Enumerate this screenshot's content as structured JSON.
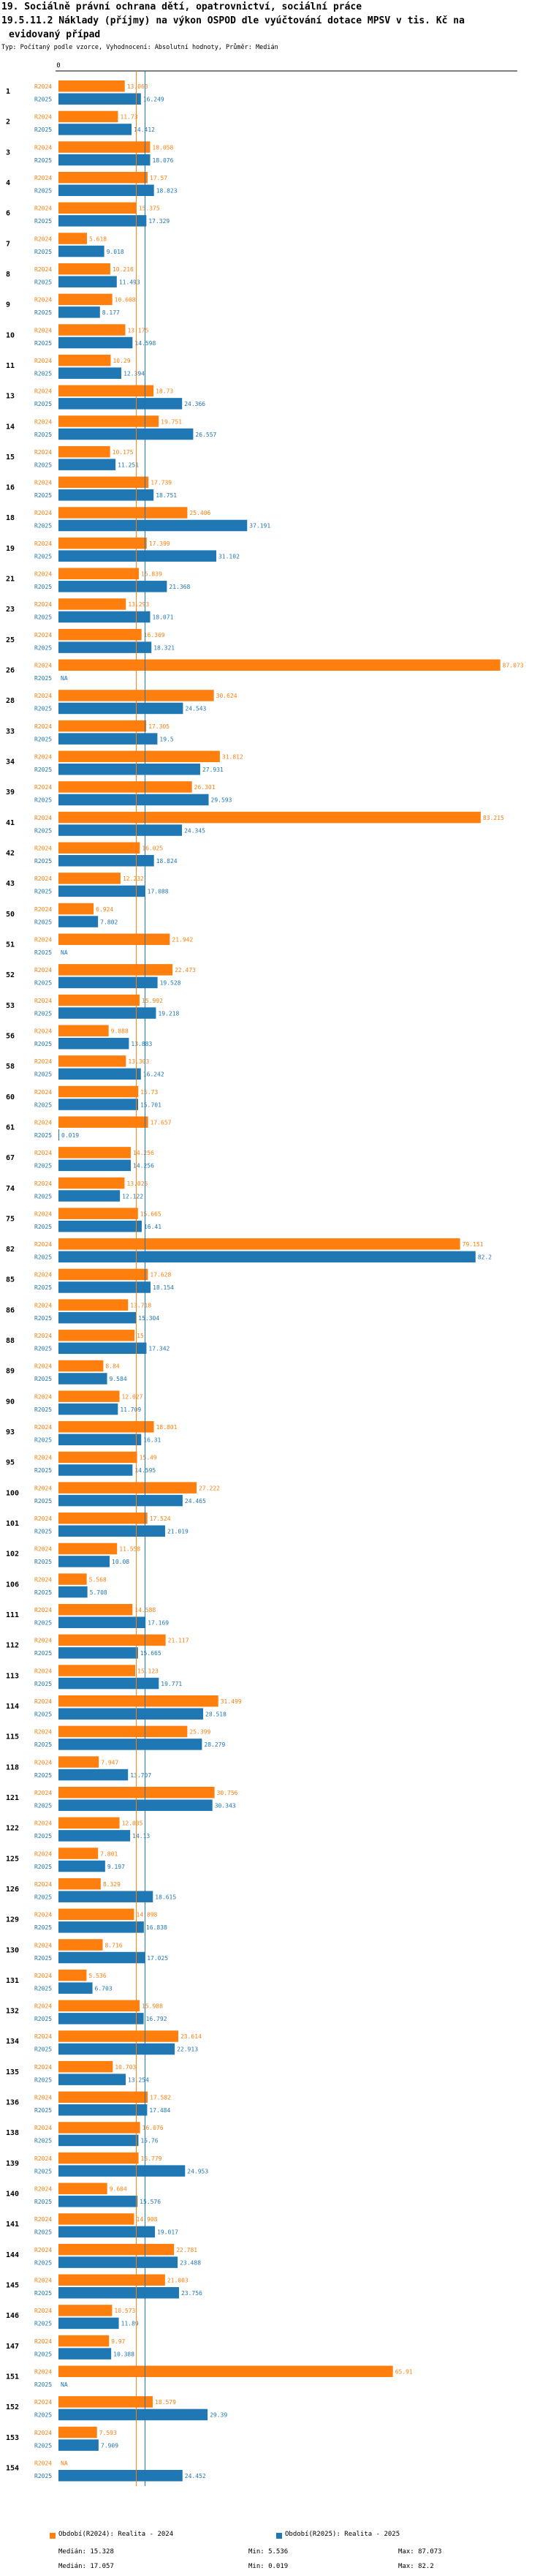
{
  "header": {
    "title_line1": "19. Sociálně právní ochrana dětí, opatrovnictví, sociální práce",
    "title_line2": "19.5.11.2 Náklady (příjmy) na výkon OSPOD dle vyúčtování dotace MPSV v tis. Kč na",
    "title_line3": "evidovaný případ",
    "subtitle": "Typ: Počítaný podle vzorce, Vyhodnocení: Absolutní hodnoty, Průměr: Medián"
  },
  "colors": {
    "r2024": "#ff7f0e",
    "r2025": "#1f77b4",
    "axis": "#000000"
  },
  "chart_data": {
    "type": "bar",
    "orientation": "horizontal",
    "xlim": [
      0,
      90
    ],
    "x_tick_label": "0",
    "series": [
      {
        "name": "R2024",
        "legend": "Období(R2024): Realita - 2024",
        "median": 15.328,
        "median_label": "Medián: 15.328",
        "min_label": "Min: 5.536",
        "max_label": "Max: 87.073"
      },
      {
        "name": "R2025",
        "legend": "Období(R2025): Realita - 2025",
        "median": 17.057,
        "median_label": "Medián: 17.057",
        "min_label": "Min: 0.019",
        "max_label": "Max: 82.2"
      }
    ],
    "rows": [
      {
        "id": "1",
        "v2024": 13.063,
        "l2024": "13.063",
        "v2025": 16.249,
        "l2025": "16.249"
      },
      {
        "id": "2",
        "v2024": 11.73,
        "l2024": "11.73",
        "v2025": 14.412,
        "l2025": "14.412"
      },
      {
        "id": "3",
        "v2024": 18.058,
        "l2024": "18.058",
        "v2025": 18.076,
        "l2025": "18.076"
      },
      {
        "id": "4",
        "v2024": 17.57,
        "l2024": "17.57",
        "v2025": 18.823,
        "l2025": "18.823"
      },
      {
        "id": "6",
        "v2024": 15.375,
        "l2024": "15.375",
        "v2025": 17.329,
        "l2025": "17.329"
      },
      {
        "id": "7",
        "v2024": 5.618,
        "l2024": "5.618",
        "v2025": 9.018,
        "l2025": "9.018"
      },
      {
        "id": "8",
        "v2024": 10.216,
        "l2024": "10.216",
        "v2025": 11.493,
        "l2025": "11.493"
      },
      {
        "id": "9",
        "v2024": 10.608,
        "l2024": "10.608",
        "v2025": 8.177,
        "l2025": "8.177"
      },
      {
        "id": "10",
        "v2024": 13.175,
        "l2024": "13.175",
        "v2025": 14.598,
        "l2025": "14.598"
      },
      {
        "id": "11",
        "v2024": 10.29,
        "l2024": "10.29",
        "v2025": 12.394,
        "l2025": "12.394"
      },
      {
        "id": "13",
        "v2024": 18.73,
        "l2024": "18.73",
        "v2025": 24.366,
        "l2025": "24.366"
      },
      {
        "id": "14",
        "v2024": 19.751,
        "l2024": "19.751",
        "v2025": 26.557,
        "l2025": "26.557"
      },
      {
        "id": "15",
        "v2024": 10.175,
        "l2024": "10.175",
        "v2025": 11.251,
        "l2025": "11.251"
      },
      {
        "id": "16",
        "v2024": 17.739,
        "l2024": "17.739",
        "v2025": 18.751,
        "l2025": "18.751"
      },
      {
        "id": "18",
        "v2024": 25.406,
        "l2024": "25.406",
        "v2025": 37.191,
        "l2025": "37.191"
      },
      {
        "id": "19",
        "v2024": 17.399,
        "l2024": "17.399",
        "v2025": 31.102,
        "l2025": "31.102"
      },
      {
        "id": "21",
        "v2024": 15.839,
        "l2024": "15.839",
        "v2025": 21.368,
        "l2025": "21.368"
      },
      {
        "id": "23",
        "v2024": 13.293,
        "l2024": "13.293",
        "v2025": 18.071,
        "l2025": "18.071"
      },
      {
        "id": "25",
        "v2024": 16.369,
        "l2024": "16.369",
        "v2025": 18.321,
        "l2025": "18.321"
      },
      {
        "id": "26",
        "v2024": 87.073,
        "l2024": "87.073",
        "v2025": 0,
        "l2025": "NA"
      },
      {
        "id": "28",
        "v2024": 30.624,
        "l2024": "30.624",
        "v2025": 24.543,
        "l2025": "24.543"
      },
      {
        "id": "33",
        "v2024": 17.305,
        "l2024": "17.305",
        "v2025": 19.5,
        "l2025": "19.5"
      },
      {
        "id": "34",
        "v2024": 31.812,
        "l2024": "31.812",
        "v2025": 27.931,
        "l2025": "27.931"
      },
      {
        "id": "39",
        "v2024": 26.301,
        "l2024": "26.301",
        "v2025": 29.593,
        "l2025": "29.593"
      },
      {
        "id": "41",
        "v2024": 83.215,
        "l2024": "83.215",
        "v2025": 24.345,
        "l2025": "24.345"
      },
      {
        "id": "42",
        "v2024": 16.025,
        "l2024": "16.025",
        "v2025": 18.824,
        "l2025": "18.824"
      },
      {
        "id": "43",
        "v2024": 12.232,
        "l2024": "12.232",
        "v2025": 17.088,
        "l2025": "17.088"
      },
      {
        "id": "50",
        "v2024": 6.924,
        "l2024": "6.924",
        "v2025": 7.802,
        "l2025": "7.802"
      },
      {
        "id": "51",
        "v2024": 21.942,
        "l2024": "21.942",
        "v2025": 0,
        "l2025": "NA"
      },
      {
        "id": "52",
        "v2024": 22.473,
        "l2024": "22.473",
        "v2025": 19.528,
        "l2025": "19.528"
      },
      {
        "id": "53",
        "v2024": 15.992,
        "l2024": "15.992",
        "v2025": 19.218,
        "l2025": "19.218"
      },
      {
        "id": "56",
        "v2024": 9.888,
        "l2024": "9.888",
        "v2025": 13.883,
        "l2025": "13.883"
      },
      {
        "id": "58",
        "v2024": 13.303,
        "l2024": "13.303",
        "v2025": 16.242,
        "l2025": "16.242"
      },
      {
        "id": "60",
        "v2024": 15.73,
        "l2024": "15.73",
        "v2025": 15.701,
        "l2025": "15.701"
      },
      {
        "id": "61",
        "v2024": 17.657,
        "l2024": "17.657",
        "v2025": 0.019,
        "l2025": "0.019"
      },
      {
        "id": "67",
        "v2024": 14.256,
        "l2024": "14.256",
        "v2025": 14.256,
        "l2025": "14.256"
      },
      {
        "id": "74",
        "v2024": 13.025,
        "l2024": "13.025",
        "v2025": 12.122,
        "l2025": "12.122"
      },
      {
        "id": "75",
        "v2024": 15.665,
        "l2024": "15.665",
        "v2025": 16.41,
        "l2025": "16.41"
      },
      {
        "id": "82",
        "v2024": 79.151,
        "l2024": "79.151",
        "v2025": 82.2,
        "l2025": "82.2"
      },
      {
        "id": "85",
        "v2024": 17.628,
        "l2024": "17.628",
        "v2025": 18.154,
        "l2025": "18.154"
      },
      {
        "id": "86",
        "v2024": 13.718,
        "l2024": "13.718",
        "v2025": 15.304,
        "l2025": "15.304"
      },
      {
        "id": "88",
        "v2024": 15,
        "l2024": "15",
        "v2025": 17.342,
        "l2025": "17.342"
      },
      {
        "id": "89",
        "v2024": 8.84,
        "l2024": "8.84",
        "v2025": 9.584,
        "l2025": "9.584"
      },
      {
        "id": "90",
        "v2024": 12.027,
        "l2024": "12.027",
        "v2025": 11.709,
        "l2025": "11.709"
      },
      {
        "id": "93",
        "v2024": 18.801,
        "l2024": "18.801",
        "v2025": 16.31,
        "l2025": "16.31"
      },
      {
        "id": "95",
        "v2024": 15.49,
        "l2024": "15.49",
        "v2025": 14.595,
        "l2025": "14.595"
      },
      {
        "id": "100",
        "v2024": 27.222,
        "l2024": "27.222",
        "v2025": 24.465,
        "l2025": "24.465"
      },
      {
        "id": "101",
        "v2024": 17.524,
        "l2024": "17.524",
        "v2025": 21.019,
        "l2025": "21.019"
      },
      {
        "id": "102",
        "v2024": 11.558,
        "l2024": "11.558",
        "v2025": 10.08,
        "l2025": "10.08"
      },
      {
        "id": "106",
        "v2024": 5.568,
        "l2024": "5.568",
        "v2025": 5.708,
        "l2025": "5.708"
      },
      {
        "id": "111",
        "v2024": 14.588,
        "l2024": "14.588",
        "v2025": 17.169,
        "l2025": "17.169"
      },
      {
        "id": "112",
        "v2024": 21.117,
        "l2024": "21.117",
        "v2025": 15.665,
        "l2025": "15.665"
      },
      {
        "id": "113",
        "v2024": 15.123,
        "l2024": "15.123",
        "v2025": 19.771,
        "l2025": "19.771"
      },
      {
        "id": "114",
        "v2024": 31.499,
        "l2024": "31.499",
        "v2025": 28.518,
        "l2025": "28.518"
      },
      {
        "id": "115",
        "v2024": 25.399,
        "l2024": "25.399",
        "v2025": 28.279,
        "l2025": "28.279"
      },
      {
        "id": "118",
        "v2024": 7.947,
        "l2024": "7.947",
        "v2025": 13.707,
        "l2025": "13.707"
      },
      {
        "id": "121",
        "v2024": 30.756,
        "l2024": "30.756",
        "v2025": 30.343,
        "l2025": "30.343"
      },
      {
        "id": "122",
        "v2024": 12.035,
        "l2024": "12.035",
        "v2025": 14.13,
        "l2025": "14.13"
      },
      {
        "id": "125",
        "v2024": 7.801,
        "l2024": "7.801",
        "v2025": 9.197,
        "l2025": "9.197"
      },
      {
        "id": "126",
        "v2024": 8.329,
        "l2024": "8.329",
        "v2025": 18.615,
        "l2025": "18.615"
      },
      {
        "id": "129",
        "v2024": 14.898,
        "l2024": "14.898",
        "v2025": 16.838,
        "l2025": "16.838"
      },
      {
        "id": "130",
        "v2024": 8.716,
        "l2024": "8.716",
        "v2025": 17.025,
        "l2025": "17.025"
      },
      {
        "id": "131",
        "v2024": 5.536,
        "l2024": "5.536",
        "v2025": 6.703,
        "l2025": "6.703"
      },
      {
        "id": "132",
        "v2024": 15.988,
        "l2024": "15.988",
        "v2025": 16.792,
        "l2025": "16.792"
      },
      {
        "id": "134",
        "v2024": 23.614,
        "l2024": "23.614",
        "v2025": 22.913,
        "l2025": "22.913"
      },
      {
        "id": "135",
        "v2024": 10.703,
        "l2024": "10.703",
        "v2025": 13.254,
        "l2025": "13.254"
      },
      {
        "id": "136",
        "v2024": 17.582,
        "l2024": "17.582",
        "v2025": 17.484,
        "l2025": "17.484"
      },
      {
        "id": "138",
        "v2024": 16.076,
        "l2024": "16.076",
        "v2025": 15.76,
        "l2025": "15.76"
      },
      {
        "id": "139",
        "v2024": 15.779,
        "l2024": "15.779",
        "v2025": 24.953,
        "l2025": "24.953"
      },
      {
        "id": "140",
        "v2024": 9.604,
        "l2024": "9.604",
        "v2025": 15.576,
        "l2025": "15.576"
      },
      {
        "id": "141",
        "v2024": 14.908,
        "l2024": "14.908",
        "v2025": 19.017,
        "l2025": "19.017"
      },
      {
        "id": "144",
        "v2024": 22.781,
        "l2024": "22.781",
        "v2025": 23.488,
        "l2025": "23.488"
      },
      {
        "id": "145",
        "v2024": 21.003,
        "l2024": "21.003",
        "v2025": 23.756,
        "l2025": "23.756"
      },
      {
        "id": "146",
        "v2024": 10.573,
        "l2024": "10.573",
        "v2025": 11.89,
        "l2025": "11.89"
      },
      {
        "id": "147",
        "v2024": 9.97,
        "l2024": "9.97",
        "v2025": 10.388,
        "l2025": "10.388"
      },
      {
        "id": "151",
        "v2024": 65.91,
        "l2024": "65.91",
        "v2025": 0,
        "l2025": "NA"
      },
      {
        "id": "152",
        "v2024": 18.579,
        "l2024": "18.579",
        "v2025": 29.39,
        "l2025": "29.39"
      },
      {
        "id": "153",
        "v2024": 7.593,
        "l2024": "7.593",
        "v2025": 7.909,
        "l2025": "7.909"
      },
      {
        "id": "154",
        "v2024": 0,
        "l2024": "NA",
        "v2025": 24.452,
        "l2025": "24.452"
      }
    ]
  }
}
